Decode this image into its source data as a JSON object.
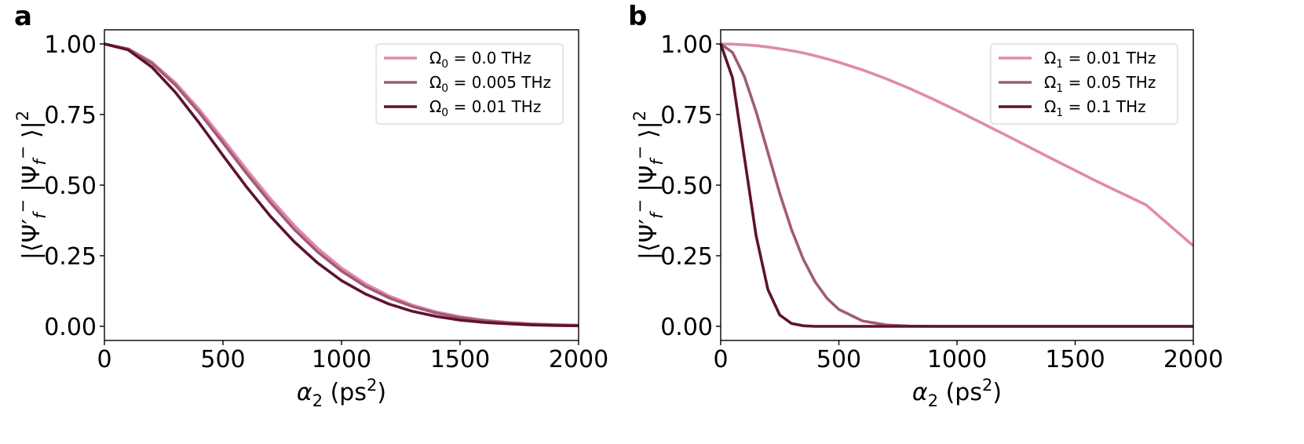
{
  "chart_data": [
    {
      "type": "line",
      "panel_label": "a",
      "title": "",
      "xlabel": "α₂ (ps²)",
      "ylabel": "|⟨Ψ′_f⁻|Ψ_f⁻⟩|²",
      "xlim": [
        0,
        2000
      ],
      "ylim": [
        -0.05,
        1.05
      ],
      "xticks": [
        0,
        500,
        1000,
        1500,
        2000
      ],
      "yticks": [
        0.0,
        0.25,
        0.5,
        0.75,
        1.0
      ],
      "xtick_labels": [
        "0",
        "500",
        "1000",
        "1500",
        "2000"
      ],
      "ytick_labels": [
        "0.00",
        "0.25",
        "0.50",
        "0.75",
        "1.00"
      ],
      "grid": false,
      "legend_position": "top-right",
      "x": [
        0,
        100,
        200,
        300,
        400,
        500,
        600,
        700,
        800,
        900,
        1000,
        1100,
        1200,
        1300,
        1400,
        1500,
        1600,
        1700,
        1800,
        1900,
        2000
      ],
      "series": [
        {
          "name": "Ω₀ = 0.0 THz",
          "legend_symbol": "Ω",
          "legend_sub": "0",
          "legend_rest": "= 0.0 THz",
          "color": "#e08aab",
          "values": [
            1.0,
            0.983,
            0.936,
            0.862,
            0.768,
            0.663,
            0.555,
            0.452,
            0.358,
            0.276,
            0.207,
            0.151,
            0.108,
            0.075,
            0.051,
            0.034,
            0.022,
            0.014,
            0.009,
            0.006,
            0.004
          ]
        },
        {
          "name": "Ω₀ = 0.005 THz",
          "legend_symbol": "Ω",
          "legend_sub": "0",
          "legend_rest": "= 0.005 THz",
          "color": "#a35a7a",
          "values": [
            1.0,
            0.982,
            0.932,
            0.854,
            0.757,
            0.65,
            0.541,
            0.438,
            0.344,
            0.263,
            0.196,
            0.142,
            0.101,
            0.07,
            0.047,
            0.031,
            0.02,
            0.013,
            0.008,
            0.005,
            0.003
          ]
        },
        {
          "name": "Ω₀ = 0.01 THz",
          "legend_symbol": "Ω",
          "legend_sub": "0",
          "legend_rest": "= 0.01 THz",
          "color": "#5e1230",
          "values": [
            1.0,
            0.979,
            0.918,
            0.828,
            0.72,
            0.605,
            0.493,
            0.39,
            0.3,
            0.224,
            0.162,
            0.115,
            0.079,
            0.053,
            0.035,
            0.022,
            0.014,
            0.009,
            0.005,
            0.003,
            0.002
          ]
        }
      ]
    },
    {
      "type": "line",
      "panel_label": "b",
      "title": "",
      "xlabel": "α₂ (ps²)",
      "ylabel": "|⟨Ψ′_f⁻|Ψ_f⁻⟩|²",
      "xlim": [
        0,
        2000
      ],
      "ylim": [
        -0.05,
        1.05
      ],
      "xticks": [
        0,
        500,
        1000,
        1500,
        2000
      ],
      "yticks": [
        0.0,
        0.25,
        0.5,
        0.75,
        1.0
      ],
      "xtick_labels": [
        "0",
        "500",
        "1000",
        "1500",
        "2000"
      ],
      "ytick_labels": [
        "0.00",
        "0.25",
        "0.50",
        "0.75",
        "1.00"
      ],
      "grid": false,
      "legend_position": "top-right",
      "x": [
        0,
        50,
        100,
        150,
        200,
        250,
        300,
        350,
        400,
        450,
        500,
        600,
        700,
        800,
        900,
        1000,
        1200,
        1400,
        1600,
        1800,
        2000
      ],
      "series": [
        {
          "name": "Ω₁ = 0.01 THz",
          "legend_symbol": "Ω",
          "legend_sub": "1",
          "legend_rest": "= 0.01 THz",
          "color": "#e08aab",
          "values": [
            1.0,
            0.999,
            0.997,
            0.994,
            0.989,
            0.983,
            0.976,
            0.968,
            0.958,
            0.947,
            0.935,
            0.908,
            0.877,
            0.842,
            0.804,
            0.764,
            0.68,
            0.594,
            0.51,
            0.43,
            0.285
          ]
        },
        {
          "name": "Ω₁ = 0.05 THz",
          "legend_symbol": "Ω",
          "legend_sub": "1",
          "legend_rest": "= 0.05 THz",
          "color": "#a35a7a",
          "values": [
            1.0,
            0.97,
            0.885,
            0.76,
            0.615,
            0.47,
            0.342,
            0.237,
            0.157,
            0.099,
            0.06,
            0.019,
            0.005,
            0.001,
            0.0,
            0.0,
            0.0,
            0.0,
            0.0,
            0.0,
            0.0
          ]
        },
        {
          "name": "Ω₁ = 0.1 THz",
          "legend_symbol": "Ω",
          "legend_sub": "1",
          "legend_rest": "= 0.1 THz",
          "color": "#5e1230",
          "values": [
            1.0,
            0.88,
            0.6,
            0.32,
            0.13,
            0.04,
            0.01,
            0.002,
            0.0,
            0.0,
            0.0,
            0.0,
            0.0,
            0.0,
            0.0,
            0.0,
            0.0,
            0.0,
            0.0,
            0.0,
            0.0
          ]
        }
      ]
    }
  ]
}
